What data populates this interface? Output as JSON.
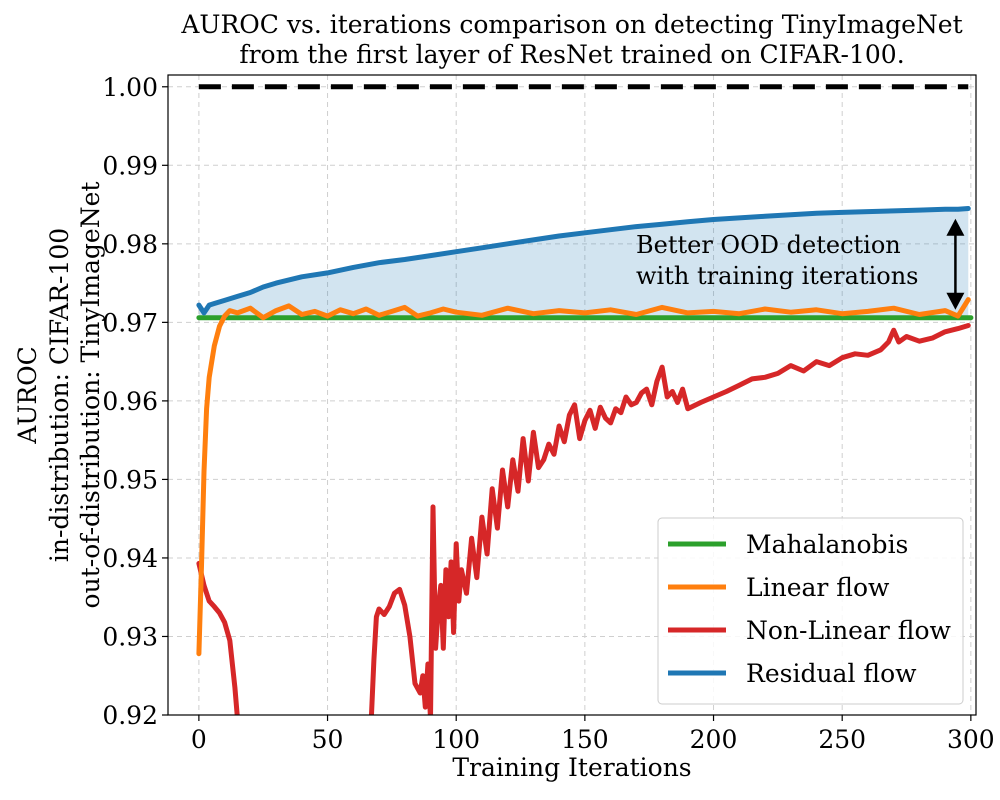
{
  "chart_data": {
    "type": "line",
    "title_lines": [
      "AUROC vs. iterations comparison on detecting TinyImageNet",
      "from the first layer of ResNet trained on CIFAR-100."
    ],
    "xlabel": "Training Iterations",
    "ylabel_lines": [
      "AUROC",
      "in-distribution: CIFAR-100",
      "out-of-distribution: TinyImageNet"
    ],
    "xlim": [
      -12,
      302
    ],
    "ylim": [
      0.92,
      1.0015
    ],
    "x_ticks": [
      0,
      50,
      100,
      150,
      200,
      250,
      300
    ],
    "x_tick_labels": [
      "0",
      "50",
      "100",
      "150",
      "200",
      "250",
      "300"
    ],
    "y_ticks": [
      0.92,
      0.93,
      0.94,
      0.95,
      0.96,
      0.97,
      0.98,
      0.99,
      1.0
    ],
    "y_tick_labels": [
      "0.92",
      "0.93",
      "0.94",
      "0.95",
      "0.96",
      "0.97",
      "0.98",
      "0.99",
      "1.00"
    ],
    "grid": true,
    "legend_position": "lower-right",
    "reference_line": {
      "y": 1.0,
      "x_range": [
        0,
        299
      ],
      "color": "#000000",
      "style": "dashed"
    },
    "fill_between": {
      "upper": "Residual flow",
      "lower": "Mahalanobis",
      "color": "#1f77b4",
      "opacity": 0.2
    },
    "annotation": {
      "lines": [
        "Better OOD detection",
        "with training iterations"
      ],
      "arrow": {
        "x": 294,
        "y_top": 0.9832,
        "y_bottom": 0.9716
      }
    },
    "series": [
      {
        "name": "Mahalanobis",
        "color": "#2ca02c",
        "x": [
          0,
          300
        ],
        "y": [
          0.9706,
          0.9706
        ]
      },
      {
        "name": "Linear flow",
        "color": "#ff7f0e",
        "x": [
          0,
          1,
          2,
          3,
          4,
          6,
          8,
          10,
          12,
          15,
          20,
          25,
          30,
          35,
          40,
          45,
          50,
          55,
          60,
          65,
          70,
          75,
          80,
          85,
          90,
          95,
          100,
          110,
          120,
          130,
          140,
          150,
          160,
          170,
          180,
          190,
          200,
          210,
          220,
          230,
          240,
          250,
          260,
          270,
          280,
          290,
          295,
          299
        ],
        "y": [
          0.9278,
          0.939,
          0.951,
          0.959,
          0.963,
          0.967,
          0.9695,
          0.9708,
          0.9715,
          0.9712,
          0.9718,
          0.9706,
          0.9715,
          0.9721,
          0.971,
          0.9714,
          0.9708,
          0.9716,
          0.9711,
          0.9717,
          0.9709,
          0.9714,
          0.9719,
          0.9708,
          0.9712,
          0.9717,
          0.9713,
          0.9709,
          0.9718,
          0.9711,
          0.9715,
          0.9712,
          0.9716,
          0.971,
          0.9719,
          0.9712,
          0.9714,
          0.9711,
          0.9717,
          0.9713,
          0.9716,
          0.9711,
          0.9714,
          0.9718,
          0.971,
          0.9715,
          0.9708,
          0.9729
        ]
      },
      {
        "name": "Non-Linear flow",
        "color": "#d62728",
        "x": [
          0,
          2,
          4,
          6,
          8,
          10,
          12,
          14,
          15,
          67,
          68,
          69,
          70,
          72,
          74,
          76,
          78,
          80,
          82,
          84,
          86,
          87,
          88,
          89,
          90,
          91,
          92,
          93,
          94,
          95,
          96,
          97,
          98,
          99,
          100,
          101,
          102,
          104,
          106,
          108,
          110,
          112,
          114,
          116,
          118,
          120,
          122,
          124,
          126,
          128,
          130,
          132,
          134,
          136,
          138,
          140,
          142,
          144,
          146,
          148,
          150,
          152,
          154,
          156,
          158,
          160,
          162,
          164,
          166,
          168,
          170,
          172,
          174,
          176,
          178,
          180,
          182,
          184,
          186,
          188,
          190,
          195,
          200,
          205,
          210,
          215,
          220,
          225,
          230,
          235,
          240,
          245,
          250,
          255,
          260,
          265,
          268,
          270,
          272,
          275,
          280,
          285,
          290,
          295,
          299
        ],
        "y": [
          0.9393,
          0.9365,
          0.9345,
          0.9338,
          0.933,
          0.9318,
          0.9295,
          0.9235,
          0.9195,
          0.9195,
          0.927,
          0.9325,
          0.9335,
          0.9328,
          0.9338,
          0.9355,
          0.936,
          0.934,
          0.93,
          0.924,
          0.9228,
          0.925,
          0.921,
          0.9265,
          0.9195,
          0.9465,
          0.9285,
          0.9335,
          0.9365,
          0.9285,
          0.9385,
          0.9325,
          0.9395,
          0.9305,
          0.9418,
          0.9345,
          0.9385,
          0.9355,
          0.9425,
          0.9375,
          0.9452,
          0.9405,
          0.9488,
          0.9438,
          0.9512,
          0.9465,
          0.9525,
          0.9485,
          0.9552,
          0.9498,
          0.956,
          0.9515,
          0.9525,
          0.9545,
          0.9532,
          0.9568,
          0.9548,
          0.9582,
          0.9595,
          0.9552,
          0.9575,
          0.9588,
          0.9565,
          0.9592,
          0.9578,
          0.9572,
          0.959,
          0.9585,
          0.9605,
          0.9595,
          0.9598,
          0.961,
          0.9615,
          0.9595,
          0.9625,
          0.9643,
          0.9605,
          0.9612,
          0.9598,
          0.9615,
          0.959,
          0.9598,
          0.9605,
          0.9612,
          0.962,
          0.9628,
          0.963,
          0.9635,
          0.9645,
          0.9638,
          0.965,
          0.9645,
          0.9655,
          0.966,
          0.9658,
          0.9665,
          0.9675,
          0.969,
          0.9675,
          0.9682,
          0.9676,
          0.968,
          0.9688,
          0.9692,
          0.9696
        ]
      },
      {
        "name": "Residual flow",
        "color": "#1f77b4",
        "x": [
          0,
          2,
          4,
          6,
          10,
          15,
          20,
          25,
          30,
          40,
          50,
          60,
          70,
          80,
          90,
          100,
          110,
          120,
          130,
          140,
          150,
          160,
          170,
          180,
          190,
          200,
          210,
          220,
          230,
          240,
          250,
          260,
          270,
          280,
          290,
          295,
          299
        ],
        "y": [
          0.9722,
          0.9712,
          0.9722,
          0.9724,
          0.9728,
          0.9733,
          0.9738,
          0.9745,
          0.975,
          0.9758,
          0.9763,
          0.977,
          0.9776,
          0.978,
          0.9785,
          0.979,
          0.9795,
          0.98,
          0.9805,
          0.981,
          0.9814,
          0.9818,
          0.9822,
          0.9825,
          0.9828,
          0.9831,
          0.9833,
          0.9835,
          0.9837,
          0.9839,
          0.984,
          0.9841,
          0.9842,
          0.9843,
          0.9844,
          0.9844,
          0.9845
        ]
      }
    ]
  }
}
